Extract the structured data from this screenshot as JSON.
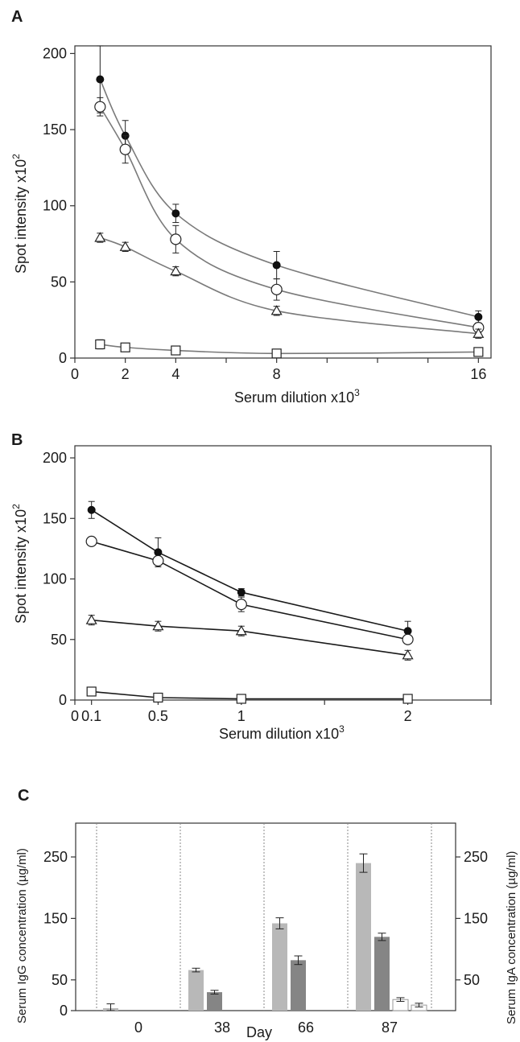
{
  "chart_data": [
    {
      "panel": "A",
      "type": "line",
      "xlabel": "Serum dilution x10",
      "xlabel_sup": "3",
      "ylabel": "Spot intensity x10",
      "ylabel_sup": "2",
      "xlim": [
        0,
        16.5
      ],
      "ylim": [
        0,
        205
      ],
      "x_ticks": [
        0,
        2,
        4,
        8,
        16
      ],
      "y_ticks": [
        0,
        50,
        100,
        150,
        200
      ],
      "x_minor_ticks": [
        6,
        10,
        12,
        14
      ],
      "colors": {
        "line": "#7a7a7a",
        "axis": "#333333"
      },
      "series": [
        {
          "marker": "filled-circle",
          "x": [
            1,
            2,
            4,
            8,
            16
          ],
          "y": [
            183,
            146,
            95,
            61,
            27
          ],
          "err": [
            22,
            10,
            6,
            9,
            4
          ]
        },
        {
          "marker": "open-circle",
          "x": [
            1,
            2,
            4,
            8,
            16
          ],
          "y": [
            165,
            137,
            78,
            45,
            20
          ],
          "err": [
            6,
            9,
            9,
            7,
            3
          ]
        },
        {
          "marker": "open-triangle",
          "x": [
            1,
            2,
            4,
            8,
            16
          ],
          "y": [
            79,
            73,
            57,
            31,
            16
          ],
          "err": [
            3,
            3,
            3,
            3,
            3
          ]
        },
        {
          "marker": "open-square",
          "x": [
            1,
            2,
            4,
            8,
            16
          ],
          "y": [
            9,
            7,
            5,
            3,
            4
          ],
          "err": [
            3,
            2,
            2,
            2,
            2
          ]
        }
      ]
    },
    {
      "panel": "B",
      "type": "line",
      "xlabel": "Serum dilution x10",
      "xlabel_sup": "3",
      "ylabel": "Spot intensity x10",
      "ylabel_sup": "2",
      "xlim": [
        0,
        2.5
      ],
      "ylim": [
        0,
        210
      ],
      "x_ticks": [
        0,
        0.1,
        0.5,
        1,
        2
      ],
      "y_ticks": [
        0,
        50,
        100,
        150,
        200
      ],
      "x_minor_ticks": [
        1.5,
        2.5
      ],
      "colors": {
        "line": "#1a1a1a",
        "axis": "#333333"
      },
      "series": [
        {
          "marker": "filled-circle",
          "x": [
            0.1,
            0.5,
            1,
            2
          ],
          "y": [
            157,
            122,
            89,
            57
          ],
          "err": [
            7,
            12,
            3,
            8
          ]
        },
        {
          "marker": "open-circle",
          "x": [
            0.1,
            0.5,
            1,
            2
          ],
          "y": [
            131,
            115,
            79,
            50
          ],
          "err": [
            0,
            0,
            6,
            0
          ]
        },
        {
          "marker": "open-triangle",
          "x": [
            0.1,
            0.5,
            1,
            2
          ],
          "y": [
            66,
            61,
            57,
            37
          ],
          "err": [
            4,
            4,
            4,
            4
          ]
        },
        {
          "marker": "open-square",
          "x": [
            0.1,
            0.5,
            1,
            2
          ],
          "y": [
            7,
            2,
            1,
            1
          ],
          "err": [
            2,
            2,
            2,
            1
          ]
        }
      ]
    },
    {
      "panel": "C",
      "type": "bar",
      "xlabel": "Day",
      "ylabel_left": "Serum IgG concentration (µg/ml)",
      "ylabel_right": "Serum IgA concentration (µg/ml)",
      "categories": [
        "0",
        "38",
        "66",
        "87"
      ],
      "ylim": [
        0,
        305
      ],
      "y_ticks_left": [
        0,
        50,
        150,
        250
      ],
      "y_ticks_right": [
        50,
        150,
        250
      ],
      "colors": {
        "light": "#b8b8b8",
        "dark": "#858585",
        "white": "#ffffff",
        "outline": "#999999",
        "divider": "#8a8a8a"
      },
      "bars": [
        {
          "category": "0",
          "shade": "light",
          "value": 4,
          "err": 7
        },
        {
          "category": "38",
          "shade": "light",
          "value": 66,
          "err": 3
        },
        {
          "category": "38",
          "shade": "dark",
          "value": 30,
          "err": 3
        },
        {
          "category": "66",
          "shade": "light",
          "value": 142,
          "err": 9
        },
        {
          "category": "66",
          "shade": "dark",
          "value": 82,
          "err": 7
        },
        {
          "category": "87",
          "shade": "light",
          "value": 240,
          "err": 15
        },
        {
          "category": "87",
          "shade": "dark",
          "value": 120,
          "err": 6
        },
        {
          "category": "87",
          "shade": "white",
          "value": 18,
          "err": 3
        },
        {
          "category": "87",
          "shade": "white",
          "value": 9,
          "err": 3
        }
      ]
    }
  ]
}
